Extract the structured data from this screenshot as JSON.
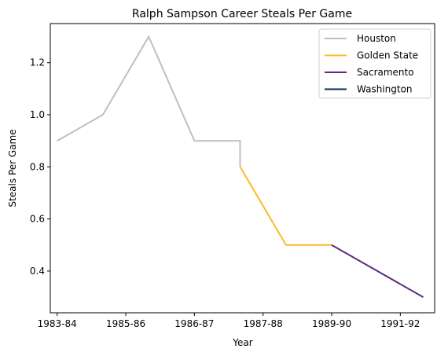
{
  "chart_data": {
    "type": "line",
    "title": "Ralph Sampson Career Steals Per Game",
    "xlabel": "Year",
    "ylabel": "Steals Per Game",
    "x_ticks": [
      "1983-84",
      "1985-86",
      "1986-87",
      "1987-88",
      "1989-90",
      "1991-92"
    ],
    "y_ticks": [
      "0.4",
      "0.6",
      "0.8",
      "1.0",
      "1.2"
    ],
    "xlim": [
      -0.05,
      2.75
    ],
    "ylim": [
      0.24,
      1.35
    ],
    "legend_position": "top-right",
    "grid": false,
    "series": [
      {
        "name": "Houston",
        "color": "#bfbfbf",
        "points": [
          [
            0,
            0.9
          ],
          [
            0.333,
            1.0
          ],
          [
            0.667,
            1.3
          ],
          [
            1.0,
            0.9
          ],
          [
            1.333,
            0.9
          ],
          [
            1.333,
            0.8
          ]
        ]
      },
      {
        "name": "Golden State",
        "color": "#fdb927",
        "points": [
          [
            1.333,
            0.8
          ],
          [
            1.667,
            0.5
          ],
          [
            2.0,
            0.5
          ]
        ]
      },
      {
        "name": "Sacramento",
        "color": "#5a2d81",
        "points": [
          [
            2.0,
            0.5
          ],
          [
            2.667,
            0.3
          ]
        ]
      },
      {
        "name": "Washington",
        "color": "#002b5c",
        "points": []
      }
    ]
  }
}
